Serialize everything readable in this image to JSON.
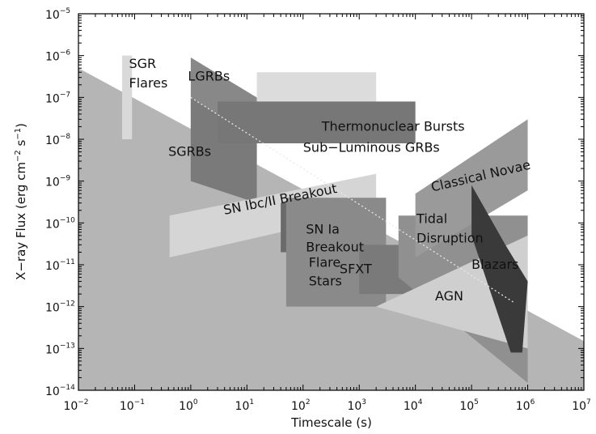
{
  "chart_data": {
    "type": "area",
    "xlabel": "Timescale (s)",
    "ylabel_parts": [
      "X−ray Flux (erg cm",
      "−2",
      " s",
      "−1",
      ")"
    ],
    "x_scale": "log",
    "y_scale": "log",
    "xlim": [
      0.01,
      10000000
    ],
    "ylim": [
      1e-14,
      1e-05
    ],
    "x_ticks": [
      {
        "base": "10",
        "exp": "−2",
        "value": 0.01
      },
      {
        "base": "10",
        "exp": "−1",
        "value": 0.1
      },
      {
        "base": "10",
        "exp": "0",
        "value": 1
      },
      {
        "base": "10",
        "exp": "1",
        "value": 10
      },
      {
        "base": "10",
        "exp": "2",
        "value": 100
      },
      {
        "base": "10",
        "exp": "3",
        "value": 1000
      },
      {
        "base": "10",
        "exp": "4",
        "value": 10000
      },
      {
        "base": "10",
        "exp": "5",
        "value": 100000
      },
      {
        "base": "10",
        "exp": "6",
        "value": 1000000
      },
      {
        "base": "10",
        "exp": "7",
        "value": 10000000
      }
    ],
    "y_ticks": [
      {
        "base": "10",
        "exp": "−14",
        "value": 1e-14
      },
      {
        "base": "10",
        "exp": "−13",
        "value": 1e-13
      },
      {
        "base": "10",
        "exp": "−12",
        "value": 1e-12
      },
      {
        "base": "10",
        "exp": "−11",
        "value": 1e-11
      },
      {
        "base": "10",
        "exp": "−10",
        "value": 1e-10
      },
      {
        "base": "10",
        "exp": "−9",
        "value": 1e-09
      },
      {
        "base": "10",
        "exp": "−8",
        "value": 1e-08
      },
      {
        "base": "10",
        "exp": "−7",
        "value": 1e-07
      },
      {
        "base": "10",
        "exp": "−6",
        "value": 1e-06
      },
      {
        "base": "10",
        "exp": "−5",
        "value": 1e-05
      }
    ],
    "grid": false,
    "sensitivity_background": {
      "color": "#b5b5b5",
      "boundary": [
        [
          0.01,
          5e-07
        ],
        [
          10000000,
          1.5e-13
        ]
      ]
    },
    "regions": [
      {
        "key": "sub-luminous-grbs",
        "color": "#dcdcdc",
        "polygon": [
          [
            15,
            4e-07
          ],
          [
            2000,
            4e-07
          ],
          [
            2000,
            8e-09
          ],
          [
            15,
            8e-09
          ]
        ],
        "label_lines": [
          "Sub−Luminous GRBs"
        ],
        "label_at": [
          2,
          -8.3
        ]
      },
      {
        "key": "sgr-flares",
        "color": "#d9d9d9",
        "polygon": [
          [
            0.06,
            1e-06
          ],
          [
            0.09,
            1e-06
          ],
          [
            0.09,
            1e-08
          ],
          [
            0.06,
            1e-08
          ]
        ],
        "label_lines": [
          "SGR",
          "Flares"
        ],
        "label_at": [
          -1.1,
          -6.3
        ],
        "line_gap": 24
      },
      {
        "key": "lgrbs",
        "color": "#888888",
        "polygon": [
          [
            1,
            9e-07
          ],
          [
            15,
            1e-07
          ],
          [
            15,
            3e-09
          ],
          [
            1,
            1e-09
          ]
        ],
        "label_lines": [
          "LGRBs"
        ],
        "label_at": [
          -0.05,
          -6.6
        ]
      },
      {
        "key": "sgrbs",
        "color": "#7a7a7a",
        "polygon": [
          [
            1,
            1e-07
          ],
          [
            15,
            1e-08
          ],
          [
            15,
            3e-10
          ],
          [
            1,
            1e-09
          ]
        ],
        "label_lines": [
          "SGRBs"
        ],
        "label_at": [
          -0.4,
          -8.4
        ]
      },
      {
        "key": "thermonuclear-bursts",
        "color": "#777777",
        "polygon": [
          [
            3,
            8e-08
          ],
          [
            10000,
            8e-08
          ],
          [
            10000,
            8e-09
          ],
          [
            3,
            8e-09
          ]
        ],
        "label_lines": [
          "Thermonuclear Bursts"
        ],
        "label_at": [
          2.33,
          -7.8
        ]
      },
      {
        "key": "sn-ibc-ii-breakout",
        "color": "#d5d5d5",
        "polygon": [
          [
            0.42,
            1.5e-10
          ],
          [
            2000,
            1.5e-09
          ],
          [
            2000,
            2e-10
          ],
          [
            0.42,
            1.5e-11
          ]
        ],
        "label_lines": [
          "SN Ibc/II Breakout"
        ],
        "label_at": [
          0.6,
          -9.8
        ],
        "rotate": -11
      },
      {
        "key": "sn-ia-breakout",
        "color": "#6a6a6a",
        "polygon": [
          [
            40,
            3e-10
          ],
          [
            2000,
            3e-10
          ],
          [
            2000,
            2e-11
          ],
          [
            40,
            2e-11
          ]
        ],
        "label_lines": [
          "SN Ia",
          "Breakout"
        ],
        "label_at": [
          2.05,
          -10.25
        ],
        "line_gap": 22
      },
      {
        "key": "flare-stars",
        "color": "#8a8a8a",
        "polygon": [
          [
            50,
            4e-10
          ],
          [
            3000,
            4e-10
          ],
          [
            3000,
            1e-12
          ],
          [
            50,
            1e-12
          ]
        ],
        "label_lines": [
          "Flare",
          "Stars"
        ],
        "label_at": [
          2.1,
          -11.05
        ],
        "line_gap": 23
      },
      {
        "key": "sfxt",
        "color": "#7a7a7a",
        "polygon": [
          [
            1000,
            3e-11
          ],
          [
            10000,
            3e-11
          ],
          [
            10000,
            2e-12
          ],
          [
            1000,
            2e-12
          ]
        ],
        "label_lines": [
          "SFXT"
        ],
        "label_at": [
          2.65,
          -11.2
        ]
      },
      {
        "key": "tidal-disruption",
        "color": "#909090",
        "polygon": [
          [
            5000,
            1.5e-10
          ],
          [
            1000000,
            1.5e-10
          ],
          [
            1000000,
            1.5e-14
          ],
          [
            5000,
            5e-12
          ]
        ],
        "label_lines": [
          "Tidal",
          "Disruption"
        ],
        "label_at": [
          4.02,
          -10
        ],
        "line_gap": 24
      },
      {
        "key": "agn",
        "color": "#cfcfcf",
        "polygon": [
          [
            2000,
            1e-12
          ],
          [
            1000000,
            5e-11
          ],
          [
            1000000,
            1e-13
          ],
          [
            2000,
            1e-12
          ]
        ],
        "label_lines": [
          "AGN"
        ],
        "label_at": [
          4.35,
          -11.85
        ]
      },
      {
        "key": "classical-novae",
        "color": "#9a9a9a",
        "polygon": [
          [
            10000,
            5e-10
          ],
          [
            1000000,
            3e-08
          ],
          [
            1000000,
            6e-10
          ],
          [
            10000,
            1.5e-11
          ]
        ],
        "label_lines": [
          "Classical Novae"
        ],
        "label_at": [
          4.3,
          -9.25
        ],
        "rotate": -13
      },
      {
        "key": "blazars",
        "color": "#3a3a3a",
        "polygon": [
          [
            100000,
            8e-10
          ],
          [
            400000,
            3e-11
          ],
          [
            1000000,
            4e-12
          ],
          [
            800000,
            8e-14
          ],
          [
            500000,
            8e-14
          ],
          [
            100000,
            5e-11
          ]
        ],
        "label_lines": [
          "Blazars"
        ],
        "label_at": [
          5,
          -11.1
        ]
      }
    ]
  }
}
